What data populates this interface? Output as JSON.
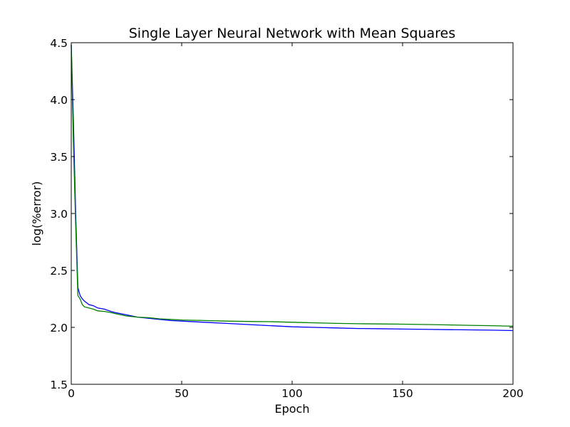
{
  "chart_data": {
    "type": "line",
    "title": "Single Layer Neural Network with Mean Squares",
    "xlabel": "Epoch",
    "ylabel": "log(%error)",
    "xlim": [
      0,
      200
    ],
    "ylim": [
      1.5,
      4.5
    ],
    "xticks": [
      0,
      50,
      100,
      150,
      200
    ],
    "yticks": [
      1.5,
      2.0,
      2.5,
      3.0,
      3.5,
      4.0,
      4.5
    ],
    "xtick_labels": [
      "0",
      "50",
      "100",
      "150",
      "200"
    ],
    "ytick_labels": [
      "1.5",
      "2.0",
      "2.5",
      "3.0",
      "3.5",
      "4.0",
      "4.5"
    ],
    "grid": false,
    "legend": "none",
    "series": [
      {
        "color": "#0000ff",
        "points": [
          [
            0,
            4.48
          ],
          [
            1,
            3.8
          ],
          [
            2,
            3.0
          ],
          [
            3,
            2.35
          ],
          [
            4,
            2.28
          ],
          [
            5,
            2.25
          ],
          [
            6,
            2.23
          ],
          [
            8,
            2.2
          ],
          [
            10,
            2.19
          ],
          [
            12,
            2.17
          ],
          [
            15,
            2.16
          ],
          [
            18,
            2.14
          ],
          [
            20,
            2.13
          ],
          [
            25,
            2.11
          ],
          [
            30,
            2.09
          ],
          [
            35,
            2.08
          ],
          [
            40,
            2.07
          ],
          [
            45,
            2.06
          ],
          [
            50,
            2.055
          ],
          [
            60,
            2.045
          ],
          [
            70,
            2.035
          ],
          [
            80,
            2.025
          ],
          [
            90,
            2.015
          ],
          [
            100,
            2.005
          ],
          [
            110,
            2.0
          ],
          [
            120,
            1.995
          ],
          [
            130,
            1.99
          ],
          [
            140,
            1.988
          ],
          [
            150,
            1.985
          ],
          [
            160,
            1.983
          ],
          [
            170,
            1.98
          ],
          [
            180,
            1.978
          ],
          [
            190,
            1.976
          ],
          [
            200,
            1.972
          ]
        ]
      },
      {
        "color": "#008000",
        "points": [
          [
            0,
            4.48
          ],
          [
            1,
            3.6
          ],
          [
            2,
            2.9
          ],
          [
            3,
            2.28
          ],
          [
            4,
            2.25
          ],
          [
            5,
            2.2
          ],
          [
            6,
            2.18
          ],
          [
            8,
            2.17
          ],
          [
            10,
            2.16
          ],
          [
            12,
            2.145
          ],
          [
            15,
            2.14
          ],
          [
            18,
            2.13
          ],
          [
            20,
            2.12
          ],
          [
            25,
            2.1
          ],
          [
            30,
            2.09
          ],
          [
            35,
            2.085
          ],
          [
            40,
            2.075
          ],
          [
            45,
            2.07
          ],
          [
            50,
            2.065
          ],
          [
            60,
            2.06
          ],
          [
            70,
            2.055
          ],
          [
            80,
            2.052
          ],
          [
            90,
            2.05
          ],
          [
            100,
            2.045
          ],
          [
            110,
            2.04
          ],
          [
            120,
            2.035
          ],
          [
            130,
            2.032
          ],
          [
            140,
            2.03
          ],
          [
            150,
            2.028
          ],
          [
            160,
            2.025
          ],
          [
            170,
            2.022
          ],
          [
            180,
            2.018
          ],
          [
            190,
            2.015
          ],
          [
            200,
            2.01
          ]
        ]
      }
    ]
  }
}
